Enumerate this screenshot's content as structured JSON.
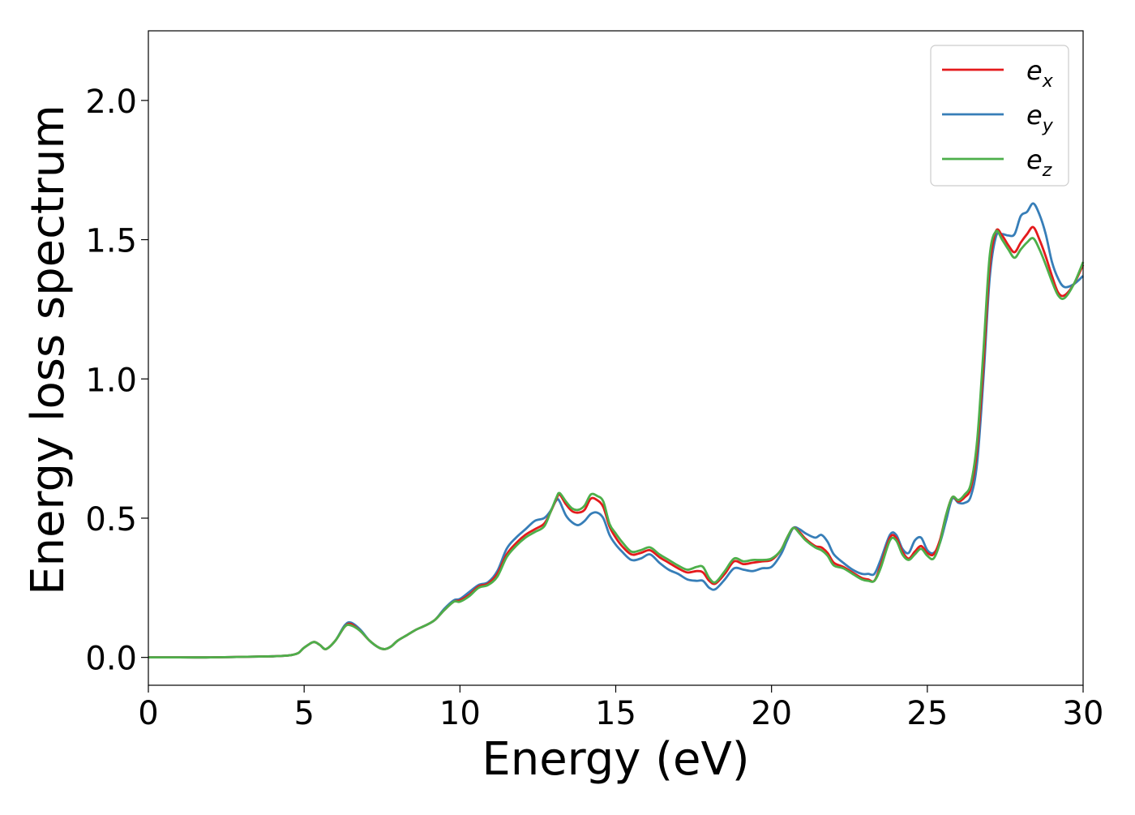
{
  "chart_data": {
    "type": "line",
    "title": "",
    "xlabel": "Energy (eV)",
    "ylabel": "Energy loss spectrum",
    "xlim": [
      0,
      30
    ],
    "ylim": [
      -0.1,
      2.25
    ],
    "xticks": [
      0,
      5,
      10,
      15,
      20,
      25,
      30
    ],
    "xtick_labels": [
      "0",
      "5",
      "10",
      "15",
      "20",
      "25",
      "30"
    ],
    "yticks": [
      0.0,
      0.5,
      1.0,
      1.5,
      2.0
    ],
    "ytick_labels": [
      "0.0",
      "0.5",
      "1.0",
      "1.5",
      "2.0"
    ],
    "grid": false,
    "legend_position": "top-right",
    "x": [
      0,
      1,
      2,
      3,
      4,
      4.5,
      4.8,
      5.0,
      5.3,
      5.5,
      5.7,
      6.0,
      6.3,
      6.5,
      6.8,
      7.1,
      7.4,
      7.6,
      7.8,
      8.0,
      8.3,
      8.6,
      8.9,
      9.2,
      9.5,
      9.8,
      10.0,
      10.3,
      10.6,
      10.9,
      11.2,
      11.5,
      11.8,
      12.1,
      12.4,
      12.7,
      12.9,
      13.1,
      13.2,
      13.4,
      13.6,
      13.8,
      14.0,
      14.2,
      14.4,
      14.6,
      14.8,
      15.0,
      15.2,
      15.5,
      15.8,
      16.1,
      16.4,
      16.7,
      17.0,
      17.3,
      17.6,
      17.8,
      18.0,
      18.2,
      18.5,
      18.8,
      19.1,
      19.4,
      19.7,
      20.0,
      20.3,
      20.5,
      20.7,
      20.9,
      21.1,
      21.4,
      21.6,
      21.8,
      22.0,
      22.3,
      22.6,
      22.9,
      23.1,
      23.3,
      23.5,
      23.8,
      24.0,
      24.2,
      24.4,
      24.6,
      24.8,
      25.0,
      25.2,
      25.4,
      25.6,
      25.8,
      26.0,
      26.2,
      26.4,
      26.6,
      26.8,
      27.0,
      27.2,
      27.4,
      27.6,
      27.8,
      28.0,
      28.2,
      28.4,
      28.6,
      28.8,
      29.0,
      29.2,
      29.4,
      29.7,
      30.0
    ],
    "series": [
      {
        "name": "e_x",
        "color": "#e41a1c",
        "values": [
          0.0,
          0.0,
          0.0,
          0.002,
          0.004,
          0.007,
          0.015,
          0.035,
          0.055,
          0.045,
          0.03,
          0.06,
          0.11,
          0.12,
          0.095,
          0.06,
          0.035,
          0.03,
          0.04,
          0.06,
          0.08,
          0.1,
          0.115,
          0.135,
          0.17,
          0.2,
          0.205,
          0.225,
          0.255,
          0.265,
          0.3,
          0.37,
          0.41,
          0.44,
          0.46,
          0.48,
          0.52,
          0.57,
          0.585,
          0.55,
          0.525,
          0.52,
          0.53,
          0.57,
          0.565,
          0.54,
          0.47,
          0.43,
          0.4,
          0.37,
          0.375,
          0.385,
          0.36,
          0.34,
          0.32,
          0.305,
          0.31,
          0.305,
          0.275,
          0.265,
          0.3,
          0.345,
          0.335,
          0.34,
          0.345,
          0.35,
          0.385,
          0.43,
          0.465,
          0.45,
          0.425,
          0.4,
          0.395,
          0.375,
          0.34,
          0.325,
          0.305,
          0.285,
          0.28,
          0.275,
          0.33,
          0.43,
          0.43,
          0.38,
          0.355,
          0.38,
          0.4,
          0.375,
          0.37,
          0.42,
          0.51,
          0.575,
          0.56,
          0.575,
          0.61,
          0.75,
          1.05,
          1.4,
          1.53,
          1.515,
          1.48,
          1.455,
          1.49,
          1.52,
          1.545,
          1.5,
          1.44,
          1.37,
          1.31,
          1.3,
          1.34,
          1.41
        ]
      },
      {
        "name": "e_y",
        "color": "#377eb8",
        "values": [
          0.0,
          0.0,
          0.0,
          0.002,
          0.004,
          0.007,
          0.015,
          0.035,
          0.055,
          0.045,
          0.03,
          0.06,
          0.115,
          0.125,
          0.1,
          0.06,
          0.035,
          0.03,
          0.04,
          0.06,
          0.08,
          0.1,
          0.115,
          0.135,
          0.175,
          0.205,
          0.21,
          0.235,
          0.26,
          0.27,
          0.31,
          0.39,
          0.43,
          0.46,
          0.49,
          0.5,
          0.525,
          0.565,
          0.56,
          0.51,
          0.485,
          0.475,
          0.49,
          0.515,
          0.52,
          0.5,
          0.44,
          0.405,
          0.38,
          0.35,
          0.355,
          0.37,
          0.34,
          0.315,
          0.3,
          0.28,
          0.275,
          0.275,
          0.25,
          0.245,
          0.28,
          0.32,
          0.315,
          0.31,
          0.32,
          0.325,
          0.37,
          0.42,
          0.465,
          0.46,
          0.445,
          0.43,
          0.44,
          0.415,
          0.37,
          0.34,
          0.315,
          0.3,
          0.3,
          0.3,
          0.35,
          0.44,
          0.44,
          0.39,
          0.375,
          0.42,
          0.43,
          0.385,
          0.375,
          0.41,
          0.49,
          0.57,
          0.555,
          0.555,
          0.58,
          0.7,
          1.0,
          1.36,
          1.51,
          1.52,
          1.515,
          1.52,
          1.585,
          1.6,
          1.63,
          1.59,
          1.52,
          1.42,
          1.36,
          1.33,
          1.34,
          1.37
        ]
      },
      {
        "name": "e_z",
        "color": "#4daf4a",
        "values": [
          0.0,
          0.0,
          0.0,
          0.002,
          0.004,
          0.007,
          0.015,
          0.035,
          0.055,
          0.045,
          0.03,
          0.06,
          0.11,
          0.115,
          0.095,
          0.06,
          0.035,
          0.03,
          0.04,
          0.06,
          0.08,
          0.1,
          0.115,
          0.135,
          0.17,
          0.2,
          0.2,
          0.22,
          0.25,
          0.26,
          0.29,
          0.36,
          0.4,
          0.43,
          0.45,
          0.47,
          0.52,
          0.575,
          0.59,
          0.56,
          0.535,
          0.53,
          0.545,
          0.585,
          0.58,
          0.56,
          0.48,
          0.445,
          0.415,
          0.38,
          0.385,
          0.395,
          0.37,
          0.35,
          0.33,
          0.315,
          0.325,
          0.325,
          0.285,
          0.27,
          0.31,
          0.355,
          0.345,
          0.35,
          0.35,
          0.355,
          0.385,
          0.43,
          0.465,
          0.445,
          0.42,
          0.395,
          0.385,
          0.365,
          0.33,
          0.32,
          0.3,
          0.28,
          0.275,
          0.275,
          0.32,
          0.42,
          0.42,
          0.37,
          0.35,
          0.37,
          0.39,
          0.365,
          0.355,
          0.41,
          0.51,
          0.575,
          0.565,
          0.585,
          0.625,
          0.78,
          1.1,
          1.44,
          1.53,
          1.5,
          1.465,
          1.435,
          1.465,
          1.49,
          1.505,
          1.465,
          1.41,
          1.35,
          1.3,
          1.29,
          1.34,
          1.42
        ]
      }
    ],
    "legend": [
      {
        "base": "e",
        "sub": "x"
      },
      {
        "base": "e",
        "sub": "y"
      },
      {
        "base": "e",
        "sub": "z"
      }
    ]
  }
}
